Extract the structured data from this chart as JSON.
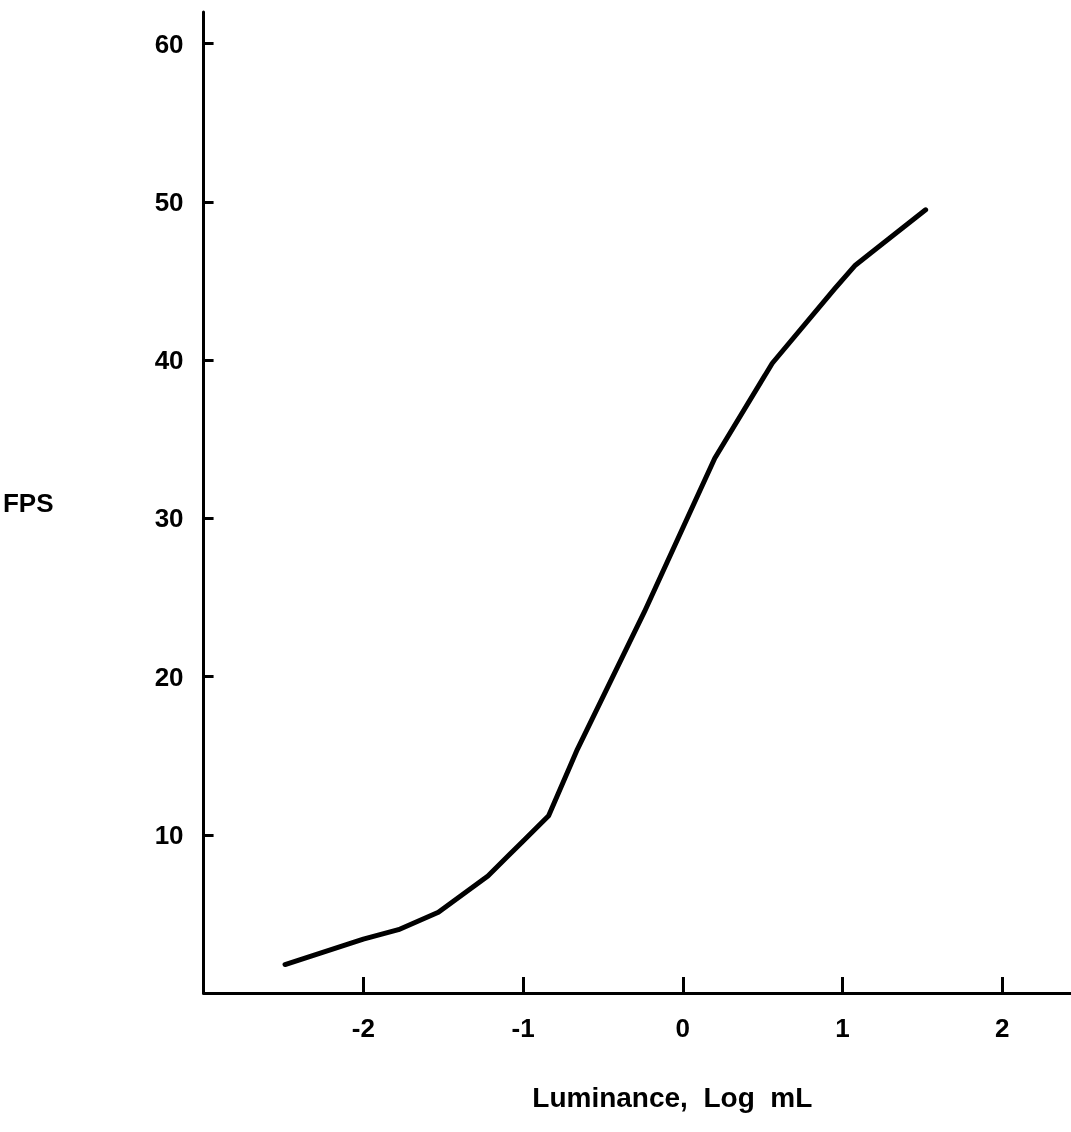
{
  "chart_data": {
    "type": "line",
    "xlabel": "Luminance,  Log  mL",
    "ylabel": "FPS",
    "x": [
      -2.49,
      -2,
      -1.78,
      -1.53,
      -1.22,
      -1.01,
      -0.84,
      -0.66,
      -0.24,
      0.2,
      0.56,
      0.95,
      1.08,
      1.52
    ],
    "series": [
      {
        "color": "#000000",
        "values": [
          1.8,
          3.4,
          4.0,
          5.1,
          7.4,
          9.5,
          11.2,
          15.4,
          24.1,
          33.8,
          39.8,
          44.5,
          46.0,
          49.5
        ]
      }
    ],
    "xlim": [
      -3,
      2.43
    ],
    "xticks": [
      -2,
      -1,
      0,
      1,
      2
    ],
    "ylim": [
      0,
      62
    ],
    "yticks": [
      10,
      20,
      30,
      40,
      50,
      60
    ],
    "marker": "none",
    "line_style": "solid"
  }
}
